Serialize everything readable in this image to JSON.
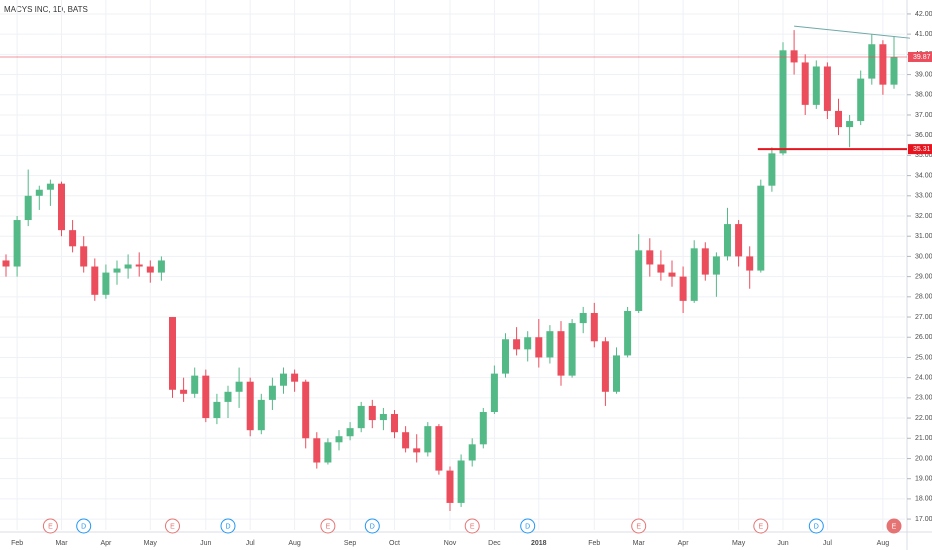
{
  "chart_data": {
    "type": "candlestick",
    "title": "MACYS INC, 1D, BATS",
    "categories": [
      null,
      "Feb",
      null,
      null,
      null,
      "Mar",
      null,
      null,
      null,
      "Apr",
      null,
      null,
      null,
      "May",
      null,
      null,
      null,
      null,
      "Jun",
      null,
      null,
      null,
      "Jul",
      null,
      null,
      null,
      "Aug",
      null,
      null,
      null,
      null,
      "Sep",
      null,
      null,
      null,
      "Oct",
      null,
      null,
      null,
      null,
      "Nov",
      null,
      null,
      null,
      "Dec",
      null,
      null,
      null,
      "2018",
      null,
      null,
      null,
      null,
      "Feb",
      null,
      null,
      null,
      "Mar",
      null,
      null,
      null,
      "Apr",
      null,
      null,
      null,
      null,
      "May",
      null,
      null,
      null,
      "Jun",
      null,
      null,
      null,
      "Jul",
      null,
      null,
      null,
      null,
      "Aug",
      null
    ],
    "events": [
      null,
      null,
      null,
      null,
      "E",
      null,
      null,
      "D",
      null,
      null,
      null,
      null,
      null,
      null,
      null,
      "E",
      null,
      null,
      null,
      null,
      "D",
      null,
      null,
      null,
      null,
      null,
      null,
      null,
      null,
      "E",
      null,
      null,
      null,
      "D",
      null,
      null,
      null,
      null,
      null,
      null,
      null,
      null,
      "E",
      null,
      null,
      null,
      null,
      "D",
      null,
      null,
      null,
      null,
      null,
      null,
      null,
      null,
      null,
      "E",
      null,
      null,
      null,
      null,
      null,
      null,
      null,
      null,
      null,
      null,
      "E",
      null,
      null,
      null,
      null,
      "D",
      null,
      null,
      null,
      null,
      null,
      null,
      "E"
    ],
    "open": [
      29.8,
      29.5,
      31.8,
      33,
      33.3,
      33.6,
      31.3,
      30.5,
      29.5,
      28.1,
      29.2,
      29.4,
      29.6,
      29.5,
      29.2,
      27,
      23.4,
      23.2,
      24.1,
      22,
      22.8,
      23.3,
      23.8,
      21.4,
      22.9,
      23.6,
      24.2,
      23.8,
      21,
      19.8,
      20.8,
      21.1,
      21.5,
      22.6,
      21.9,
      22.2,
      21.3,
      20.5,
      20.3,
      21.6,
      19.4,
      17.8,
      19.9,
      20.7,
      22.3,
      24.2,
      25.9,
      25.4,
      26,
      25,
      26.3,
      24.1,
      26.7,
      27.2,
      25.8,
      23.3,
      25.1,
      27.3,
      30.3,
      29.6,
      29.2,
      29,
      27.8,
      30.4,
      29.1,
      30,
      31.6,
      30,
      29.3,
      33.5,
      35.1,
      40.2,
      39.6,
      37.5,
      39.4,
      37.2,
      36.4,
      36.7,
      38.8,
      40.5,
      38.5
    ],
    "high": [
      30.1,
      32,
      34.3,
      33.5,
      33.8,
      33.7,
      31.8,
      31,
      29.9,
      29.6,
      29.8,
      30.1,
      30.2,
      29.8,
      30,
      27,
      24,
      24.5,
      24.4,
      23.2,
      23.6,
      24.5,
      24,
      23.2,
      24,
      24.5,
      24.4,
      23.9,
      21.3,
      21,
      21.4,
      21.8,
      22.8,
      22.9,
      22.5,
      22.4,
      21.6,
      21.2,
      21.8,
      21.7,
      19.6,
      20.2,
      21,
      22.5,
      24.6,
      26.2,
      26.5,
      26.3,
      26.9,
      26.6,
      26.8,
      26.9,
      27.5,
      27.7,
      26,
      25.5,
      27.5,
      31.1,
      30.9,
      30.3,
      29.8,
      29.5,
      30.8,
      30.7,
      30.2,
      32.4,
      31.8,
      30.5,
      33.8,
      35.4,
      40.6,
      41.2,
      40,
      39.7,
      39.6,
      37.8,
      37,
      39.2,
      41,
      40.7,
      40.9
    ],
    "low": [
      29,
      29,
      31.5,
      32.3,
      32.5,
      31,
      30.2,
      29.2,
      27.8,
      27.9,
      28.6,
      28.9,
      29,
      28.7,
      28.8,
      23,
      22.8,
      23,
      21.8,
      21.7,
      22,
      22.5,
      21.1,
      21.2,
      22.4,
      23.2,
      23.3,
      20.5,
      19.5,
      19.7,
      20.4,
      20.9,
      21.3,
      21.5,
      21.4,
      21,
      20.3,
      19.8,
      20.1,
      19.2,
      17.4,
      17.6,
      19.6,
      20.5,
      22.2,
      24,
      25.1,
      24.8,
      24.5,
      24.7,
      23.6,
      24,
      26.2,
      25.5,
      22.6,
      23.2,
      25,
      27.2,
      29,
      28.8,
      28.5,
      27.2,
      27.7,
      28.8,
      28,
      29.8,
      29.5,
      28.4,
      29.2,
      33.2,
      35,
      39,
      37,
      37.3,
      36.8,
      36,
      35.4,
      36.5,
      38.5,
      38,
      38.3
    ],
    "close": [
      29.5,
      31.8,
      33,
      33.3,
      33.6,
      31.3,
      30.5,
      29.5,
      28.1,
      29.2,
      29.4,
      29.6,
      29.5,
      29.2,
      29.8,
      23.4,
      23.2,
      24.1,
      22,
      22.8,
      23.3,
      23.8,
      21.4,
      22.9,
      23.6,
      24.2,
      23.8,
      21,
      19.8,
      20.8,
      21.1,
      21.5,
      22.6,
      21.9,
      22.2,
      21.3,
      20.5,
      20.3,
      21.6,
      19.4,
      17.8,
      19.9,
      20.7,
      22.3,
      24.2,
      25.9,
      25.4,
      26,
      25,
      26.3,
      24.1,
      26.7,
      27.2,
      25.8,
      23.3,
      25.1,
      27.3,
      30.3,
      29.6,
      29.2,
      29,
      27.8,
      30.4,
      29.1,
      30,
      31.6,
      30,
      29.3,
      33.5,
      35.1,
      40.2,
      39.6,
      37.5,
      39.4,
      37.2,
      36.4,
      36.7,
      38.8,
      40.5,
      38.5,
      39.87
    ],
    "up_color": "#53b987",
    "down_color": "#eb4d5c",
    "last_price": 39.87,
    "level": 35.31,
    "trendline": [
      41.4,
      40.8
    ],
    "ylim": [
      16.46,
      42.69
    ],
    "yticks": [
      {
        "value": 17,
        "label": "17.00"
      },
      {
        "value": 18,
        "label": "18.00"
      },
      {
        "value": 19,
        "label": "19.00"
      },
      {
        "value": 20,
        "label": "20.00"
      },
      {
        "value": 21,
        "label": "21.00"
      },
      {
        "value": 22,
        "label": "22.00"
      },
      {
        "value": 23,
        "label": "23.00"
      },
      {
        "value": 24,
        "label": "24.00"
      },
      {
        "value": 25,
        "label": "25.00"
      },
      {
        "value": 26,
        "label": "26.00"
      },
      {
        "value": 27,
        "label": "27.00"
      },
      {
        "value": 28,
        "label": "28.00"
      },
      {
        "value": 29,
        "label": "29.00"
      },
      {
        "value": 30,
        "label": "30.00"
      },
      {
        "value": 31,
        "label": "31.00"
      },
      {
        "value": 32,
        "label": "32.00"
      },
      {
        "value": 33,
        "label": "33.00"
      },
      {
        "value": 34,
        "label": "34.00"
      },
      {
        "value": 35,
        "label": "35.00"
      },
      {
        "value": 36,
        "label": "36.00"
      },
      {
        "value": 37,
        "label": "37.00"
      },
      {
        "value": 38,
        "label": "38.00"
      },
      {
        "value": 39,
        "label": "39.00"
      },
      {
        "value": 40,
        "label": "40.00"
      },
      {
        "value": 41,
        "label": "41.00"
      },
      {
        "value": 42,
        "label": "42.00"
      }
    ],
    "grid": true
  }
}
